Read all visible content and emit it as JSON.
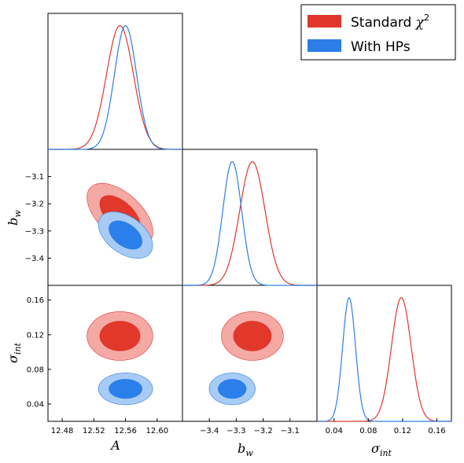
{
  "chart_data": {
    "type": "corner",
    "parameters": [
      {
        "key": "A",
        "label_main": "A",
        "label_sub": ""
      },
      {
        "key": "bw",
        "label_main": "b",
        "label_sub": "w"
      },
      {
        "key": "sigma",
        "label_main": "σ",
        "label_sub": "int"
      }
    ],
    "ticks": {
      "A": [
        "12.48",
        "12.52",
        "12.56",
        "12.60"
      ],
      "bw": [
        "−3.4",
        "−3.3",
        "−3.2",
        "−3.1"
      ],
      "sigma": [
        "0.04",
        "0.08",
        "0.12",
        "0.16"
      ]
    },
    "ranges": {
      "A": [
        12.462,
        12.632
      ],
      "bw": [
        -3.5,
        -3.0
      ],
      "sigma": [
        0.02,
        0.177
      ]
    },
    "legend": {
      "position": "top-right",
      "entries": [
        {
          "name": "Standard",
          "suffix": "χ",
          "sup": "2",
          "series": "standard"
        },
        {
          "name": "With HPs",
          "suffix": "",
          "sup": "",
          "series": "hps"
        }
      ]
    },
    "series": [
      {
        "id": "standard",
        "color": "#e0362b",
        "inner_color": "#e2382b",
        "outer_color": "#f4a9a5",
        "mean": {
          "A": 12.553,
          "bw": -3.24,
          "sigma": 0.1185
        },
        "sd": {
          "A": 0.017,
          "bw": 0.047,
          "sigma": 0.0115
        },
        "corr": {
          "A_bw": -0.55,
          "A_sigma": 0.0,
          "bw_sigma": 0.0
        }
      },
      {
        "id": "hps",
        "color": "#2c7de6",
        "inner_color": "#2a7fea",
        "outer_color": "#a8cbf5",
        "mean": {
          "A": 12.56,
          "bw": -3.315,
          "sigma": 0.0575
        },
        "sd": {
          "A": 0.014,
          "bw": 0.035,
          "sigma": 0.0075
        },
        "corr": {
          "A_bw": -0.45,
          "A_sigma": 0.0,
          "bw_sigma": 0.0
        }
      }
    ]
  }
}
